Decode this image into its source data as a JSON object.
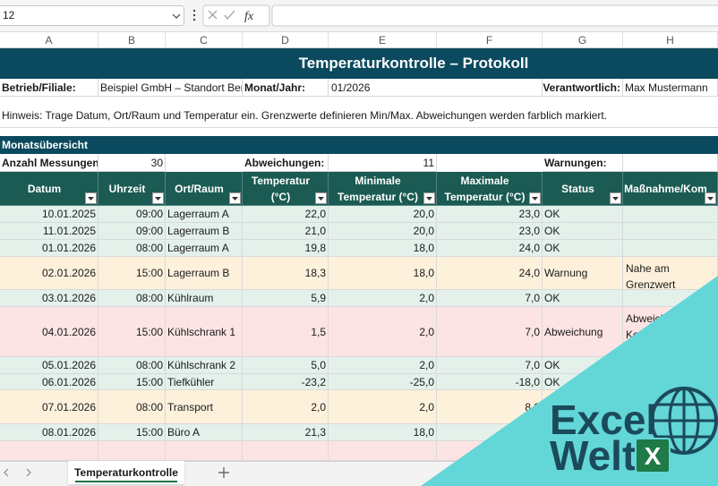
{
  "toolbar": {
    "name_box": "12",
    "function_label": "fx"
  },
  "column_headers": [
    "A",
    "B",
    "C",
    "D",
    "E",
    "F",
    "G",
    "H"
  ],
  "title": "Temperaturkontrolle – Protokoll",
  "info": {
    "business_label": "Betrieb/Filiale:",
    "business_value": "Beispiel GmbH – Standort Berl",
    "month_label": "Monat/Jahr:",
    "month_value": "01/2026",
    "responsible_label": "Verantwortlich:",
    "responsible_value": "Max Mustermann"
  },
  "hint": "Hinweis: Trage Datum, Ort/Raum und Temperatur ein. Grenzwerte definieren Min/Max. Abweichungen werden farblich markiert.",
  "summary": {
    "title": "Monatsübersicht",
    "measurements_label": "Anzahl Messungen:",
    "measurements_value": "30",
    "deviations_label": "Abweichungen:",
    "deviations_value": "11",
    "warnings_label": "Warnungen:"
  },
  "table": {
    "headers": [
      "Datum",
      "Uhrzeit",
      "Ort/Raum",
      "Temperatur (°C)",
      "Minimale Temperatur (°C)",
      "Maximale Temperatur (°C)",
      "Status",
      "Maßnahme/Kom"
    ],
    "row_colors": [
      "#e3f1ea",
      "#e3f1ea",
      "#e3f1ea",
      "#fdf1dc",
      "#e3f1ea",
      "#fde4e4",
      "#e3f1ea",
      "#e3f1ea",
      "#fdf1dc",
      "#e3f1ea"
    ],
    "rows": [
      [
        "10.01.2025",
        "09:00",
        "Lagerraum A",
        "22,0",
        "20,0",
        "23,0",
        "OK",
        null
      ],
      [
        "11.01.2025",
        "09:00",
        "Lagerraum B",
        "21,0",
        "20,0",
        "23,0",
        "OK",
        null
      ],
      [
        "01.01.2026",
        "08:00",
        "Lagerraum A",
        "19,8",
        "18,0",
        "24,0",
        "OK",
        null
      ],
      [
        "02.01.2026",
        "15:00",
        "Lagerraum B",
        "18,3",
        "18,0",
        "24,0",
        "Warnung",
        "Nahe am Grenzwert\nmessen."
      ],
      [
        "03.01.2026",
        "08:00",
        "Kühlraum",
        "5,9",
        "2,0",
        "7,0",
        "OK",
        null
      ],
      [
        "04.01.2026",
        "15:00",
        "Kühlschrank 1",
        "1,5",
        "2,0",
        "7,0",
        "Abweichung",
        "Abweichung\nKontrolle"
      ],
      [
        "05.01.2026",
        "08:00",
        "Kühlschrank 2",
        "5,0",
        "2,0",
        "7,0",
        "OK",
        null
      ],
      [
        "06.01.2026",
        "15:00",
        "Tiefkühler",
        "-23,2",
        "-25,0",
        "-18,0",
        "OK",
        null
      ],
      [
        "07.01.2026",
        "08:00",
        "Transport",
        "2,0",
        "2,0",
        "8,0",
        null,
        null
      ],
      [
        "08.01.2026",
        "15:00",
        "Büro A",
        "21,3",
        "18,0",
        null,
        null,
        null
      ]
    ]
  },
  "sheet_tab": "Temperaturkontrolle",
  "logo": {
    "line1": "Excel",
    "line2": "Welt",
    "badge": "X"
  }
}
